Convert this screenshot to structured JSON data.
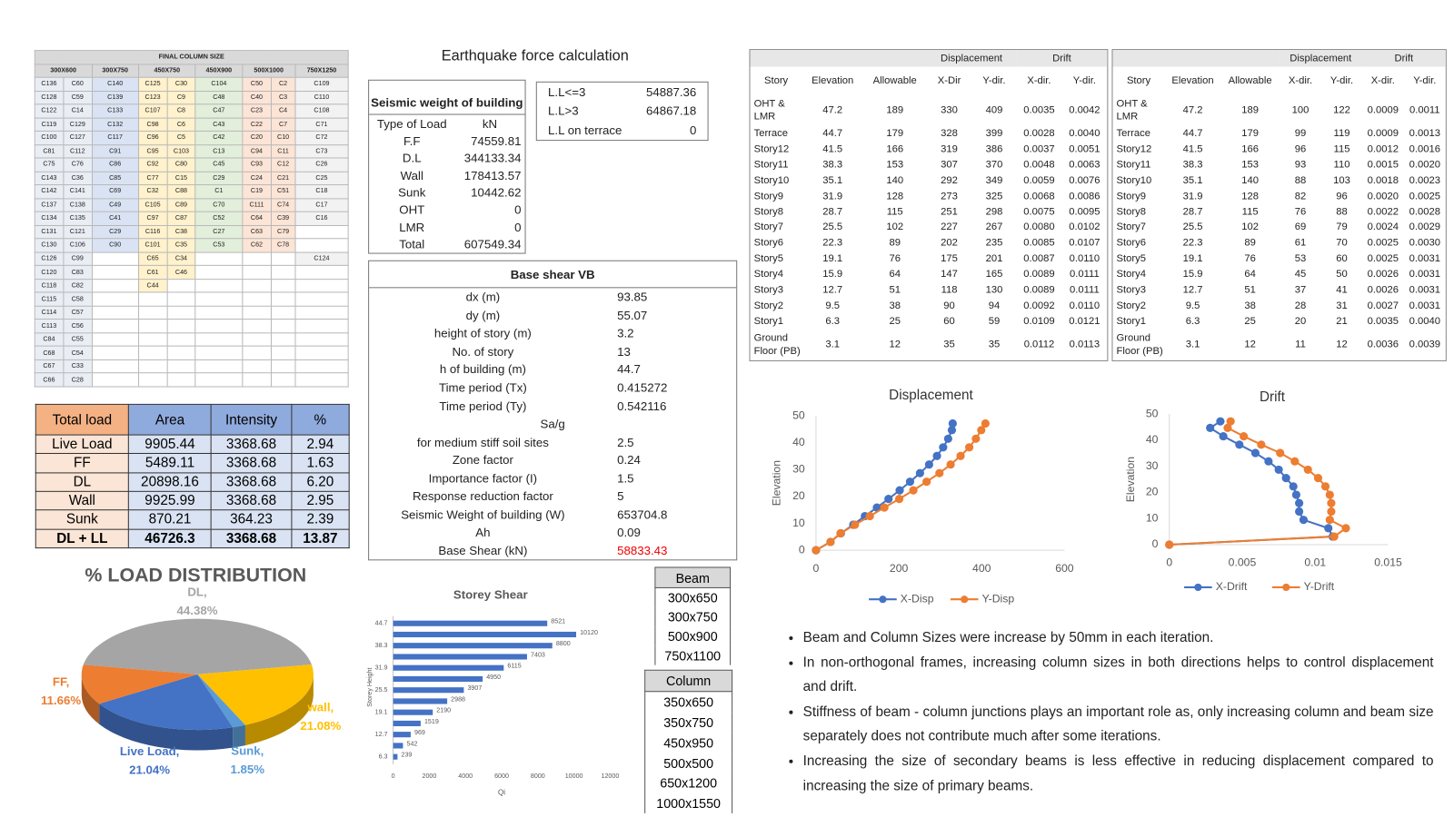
{
  "column_size": {
    "title": "FINAL COLUMN SIZE",
    "headers": [
      "300X600",
      "300X750",
      "450X750",
      "450X900",
      "500X1000",
      "750X1250"
    ],
    "rows": [
      [
        "C136",
        "C60",
        "C140",
        "C125",
        "C30",
        "C104",
        "C50",
        "C2",
        "C109"
      ],
      [
        "C128",
        "C59",
        "C139",
        "C123",
        "C9",
        "C48",
        "C40",
        "C3",
        "C110"
      ],
      [
        "C122",
        "C14",
        "C133",
        "C107",
        "C8",
        "C47",
        "C23",
        "C4",
        "C108"
      ],
      [
        "C119",
        "C129",
        "C132",
        "C98",
        "C6",
        "C43",
        "C22",
        "C7",
        "C71"
      ],
      [
        "C100",
        "C127",
        "C117",
        "C96",
        "C5",
        "C42",
        "C20",
        "C10",
        "C72"
      ],
      [
        "C81",
        "C112",
        "C91",
        "C95",
        "C103",
        "C13",
        "C94",
        "C11",
        "C73"
      ],
      [
        "C75",
        "C76",
        "C86",
        "C92",
        "C80",
        "C45",
        "C93",
        "C12",
        "C26"
      ],
      [
        "C143",
        "C36",
        "C85",
        "C77",
        "C15",
        "C29",
        "C24",
        "C21",
        "C25"
      ],
      [
        "C142",
        "C141",
        "C69",
        "C32",
        "C88",
        "C1",
        "C19",
        "C51",
        "C18"
      ],
      [
        "C137",
        "C138",
        "C49",
        "C105",
        "C89",
        "C70",
        "C111",
        "C74",
        "C17"
      ],
      [
        "C134",
        "C135",
        "C41",
        "C97",
        "C87",
        "C52",
        "C64",
        "C39",
        "C16"
      ],
      [
        "C131",
        "C121",
        "C29",
        "C116",
        "C38",
        "C27",
        "C63",
        "C79"
      ],
      [
        "C130",
        "C106",
        "C90",
        "C101",
        "C35",
        "C53",
        "C62",
        "C78"
      ],
      [
        "C126",
        "C99",
        null,
        "C65",
        "C34",
        null,
        null,
        null,
        "C124"
      ],
      [
        "C120",
        "C83",
        null,
        "C61",
        "C46"
      ],
      [
        "C118",
        "C82",
        null,
        "C44"
      ],
      [
        "C115",
        "C58"
      ],
      [
        "C114",
        "C57"
      ],
      [
        "C113",
        "C56"
      ],
      [
        "C84",
        "C55"
      ],
      [
        "C68",
        "C54"
      ],
      [
        "C67",
        "C33"
      ],
      [
        "C66",
        "C28"
      ]
    ]
  },
  "earthquake": {
    "title": "Earthquake force calculation",
    "seismic_weight": {
      "title": "Seismic weight of building",
      "header": [
        "Type of Load",
        "kN"
      ],
      "rows": [
        [
          "F.F",
          "74559.81"
        ],
        [
          "D.L",
          "344133.34"
        ],
        [
          "Wall",
          "178413.57"
        ],
        [
          "Sunk",
          "10442.62"
        ],
        [
          "OHT",
          "0"
        ],
        [
          "LMR",
          "0"
        ],
        [
          "Total",
          "607549.34"
        ]
      ]
    },
    "live_load": {
      "rows": [
        [
          "L.L<=3",
          "54887.36"
        ],
        [
          "L.L>3",
          "64867.18"
        ],
        [
          "L.L on terrace",
          "0"
        ]
      ]
    },
    "base_shear": {
      "title": "Base shear VB",
      "rows": [
        [
          "dx (m)",
          "93.85"
        ],
        [
          "dy (m)",
          "55.07"
        ],
        [
          "height of story (m)",
          "3.2"
        ],
        [
          "No. of story",
          "13"
        ],
        [
          "h of building (m)",
          "44.7"
        ],
        [
          "Time period (Tx)",
          "0.415272"
        ],
        [
          "Time period (Ty)",
          "0.542116"
        ],
        [
          "Sa/g"
        ],
        [
          "for medium stiff soil sites",
          "2.5"
        ],
        [
          "Zone factor",
          "0.24"
        ],
        [
          "Importance factor (I)",
          "1.5"
        ],
        [
          "Response reduction factor",
          "5"
        ],
        [
          "Seismic Weight of building (W)",
          "653704.8"
        ],
        [
          "Ah",
          "0.09"
        ],
        [
          "Base Shear (kN)",
          "58833.43"
        ]
      ]
    }
  },
  "total_load": {
    "header": [
      "Total load",
      "Area",
      "Intensity",
      "%"
    ],
    "rows": [
      [
        "Live Load",
        "9905.44",
        "3368.68",
        "2.94"
      ],
      [
        "FF",
        "5489.11",
        "3368.68",
        "1.63"
      ],
      [
        "DL",
        "20898.16",
        "3368.68",
        "6.20"
      ],
      [
        "Wall",
        "9925.99",
        "3368.68",
        "2.95"
      ],
      [
        "Sunk",
        "870.21",
        "364.23",
        "2.39"
      ],
      [
        "DL + LL",
        "46726.3",
        "3368.68",
        "13.87"
      ]
    ]
  },
  "beam": {
    "header": "Beam",
    "rows": [
      "300x650",
      "300x750",
      "500x900",
      "750x1100"
    ]
  },
  "column": {
    "header": "Column",
    "rows": [
      "350x650",
      "350x750",
      "450x950",
      "500x500",
      "650x1200",
      "1000x1550"
    ]
  },
  "drift_tables": [
    {
      "groups": [
        "Displacement",
        "Drift"
      ],
      "header": [
        "Story",
        "Elevation",
        "Allowable",
        "X-Dir",
        "Y-dir.",
        "X-dir.",
        "Y-dir."
      ],
      "rows": [
        [
          "OHT & LMR",
          "47.2",
          "189",
          "330",
          "409",
          "0.0035",
          "0.0042"
        ],
        [
          "Terrace",
          "44.7",
          "179",
          "328",
          "399",
          "0.0028",
          "0.0040"
        ],
        [
          "Story12",
          "41.5",
          "166",
          "319",
          "386",
          "0.0037",
          "0.0051"
        ],
        [
          "Story11",
          "38.3",
          "153",
          "307",
          "370",
          "0.0048",
          "0.0063"
        ],
        [
          "Story10",
          "35.1",
          "140",
          "292",
          "349",
          "0.0059",
          "0.0076"
        ],
        [
          "Story9",
          "31.9",
          "128",
          "273",
          "325",
          "0.0068",
          "0.0086"
        ],
        [
          "Story8",
          "28.7",
          "115",
          "251",
          "298",
          "0.0075",
          "0.0095"
        ],
        [
          "Story7",
          "25.5",
          "102",
          "227",
          "267",
          "0.0080",
          "0.0102"
        ],
        [
          "Story6",
          "22.3",
          "89",
          "202",
          "235",
          "0.0085",
          "0.0107"
        ],
        [
          "Story5",
          "19.1",
          "76",
          "175",
          "201",
          "0.0087",
          "0.0110"
        ],
        [
          "Story4",
          "15.9",
          "64",
          "147",
          "165",
          "0.0089",
          "0.0111"
        ],
        [
          "Story3",
          "12.7",
          "51",
          "118",
          "130",
          "0.0089",
          "0.0111"
        ],
        [
          "Story2",
          "9.5",
          "38",
          "90",
          "94",
          "0.0092",
          "0.0110"
        ],
        [
          "Story1",
          "6.3",
          "25",
          "60",
          "59",
          "0.0109",
          "0.0121"
        ],
        [
          "Ground Floor (PB)",
          "3.1",
          "12",
          "35",
          "35",
          "0.0112",
          "0.0113"
        ]
      ]
    },
    {
      "groups": [
        "Displacement",
        "Drift"
      ],
      "header": [
        "Story",
        "Elevation",
        "Allowable",
        "X-dir.",
        "Y-dir.",
        "X-dir.",
        "Y-dir."
      ],
      "rows": [
        [
          "OHT & LMR",
          "47.2",
          "189",
          "100",
          "122",
          "0.0009",
          "0.0011"
        ],
        [
          "Terrace",
          "44.7",
          "179",
          "99",
          "119",
          "0.0009",
          "0.0013"
        ],
        [
          "Story12",
          "41.5",
          "166",
          "96",
          "115",
          "0.0012",
          "0.0016"
        ],
        [
          "Story11",
          "38.3",
          "153",
          "93",
          "110",
          "0.0015",
          "0.0020"
        ],
        [
          "Story10",
          "35.1",
          "140",
          "88",
          "103",
          "0.0018",
          "0.0023"
        ],
        [
          "Story9",
          "31.9",
          "128",
          "82",
          "96",
          "0.0020",
          "0.0025"
        ],
        [
          "Story8",
          "28.7",
          "115",
          "76",
          "88",
          "0.0022",
          "0.0028"
        ],
        [
          "Story7",
          "25.5",
          "102",
          "69",
          "79",
          "0.0024",
          "0.0029"
        ],
        [
          "Story6",
          "22.3",
          "89",
          "61",
          "70",
          "0.0025",
          "0.0030"
        ],
        [
          "Story5",
          "19.1",
          "76",
          "53",
          "60",
          "0.0025",
          "0.0031"
        ],
        [
          "Story4",
          "15.9",
          "64",
          "45",
          "50",
          "0.0026",
          "0.0031"
        ],
        [
          "Story3",
          "12.7",
          "51",
          "37",
          "41",
          "0.0026",
          "0.0031"
        ],
        [
          "Story2",
          "9.5",
          "38",
          "28",
          "31",
          "0.0027",
          "0.0031"
        ],
        [
          "Story1",
          "6.3",
          "25",
          "20",
          "21",
          "0.0035",
          "0.0040"
        ],
        [
          "Ground Floor (PB)",
          "3.1",
          "12",
          "11",
          "12",
          "0.0036",
          "0.0039"
        ]
      ]
    }
  ],
  "bullets": [
    "Beam and Column Sizes were increase by 50mm in each iteration.",
    "In non-orthogonal frames, increasing column sizes in both directions helps to control displacement and drift.",
    "Stiffness of beam - column junctions plays an important role as, only increasing column and beam size separately does not contribute much after some iterations.",
    "Increasing the size of secondary beams is less effective in reducing displacement compared to increasing the size of primary beams."
  ],
  "chart_data": [
    {
      "type": "pie",
      "title": "% LOAD DISTRIBUTION",
      "categories": [
        "DL,",
        "wall,",
        "Sunk,",
        "Live Load,",
        "FF,"
      ],
      "values": [
        44.38,
        21.08,
        1.85,
        21.04,
        11.66
      ],
      "value_labels": [
        "44.38%",
        "21.08%",
        "1.85%",
        "21.04%",
        "11.66%"
      ],
      "colors": [
        "#a5a5a5",
        "#ffc000",
        "#5b9bd5",
        "#4472c4",
        "#ed7d31"
      ]
    },
    {
      "type": "bar",
      "orientation": "horizontal",
      "title": "Storey Shear",
      "ylabel": "Storey Height",
      "xlabel": "Qi",
      "categories": [
        44.7,
        null,
        38.3,
        null,
        31.9,
        null,
        25.5,
        null,
        19.1,
        null,
        12.7,
        null,
        6.3
      ],
      "values": [
        8521,
        10120,
        8800,
        7403,
        6115,
        4950,
        3907,
        2988,
        2190,
        1519,
        969,
        542,
        239
      ],
      "color": "#4472c4",
      "xlim": [
        0,
        12000
      ],
      "xticks": [
        0,
        2000,
        4000,
        6000,
        8000,
        10000,
        12000
      ]
    },
    {
      "type": "line",
      "title": "Displacement",
      "ylabel": "Elevation",
      "legend": "bottom",
      "xlim": [
        0,
        600
      ],
      "xticks": [
        0,
        200,
        400,
        600
      ],
      "ylim": [
        0,
        50
      ],
      "yticks": [
        0,
        10,
        20,
        30,
        40,
        50
      ],
      "series": [
        {
          "name": "X-Disp",
          "color": "#4472c4",
          "x": [
            0,
            35,
            60,
            90,
            118,
            147,
            175,
            202,
            227,
            251,
            273,
            292,
            307,
            319,
            328,
            330
          ],
          "values": [
            0,
            3.1,
            6.3,
            9.5,
            12.7,
            15.9,
            19.1,
            22.3,
            25.5,
            28.7,
            31.9,
            35.1,
            38.3,
            41.5,
            44.7,
            47.2
          ]
        },
        {
          "name": "Y-Disp",
          "color": "#ed7d31",
          "x": [
            0,
            35,
            59,
            94,
            130,
            165,
            201,
            235,
            267,
            298,
            325,
            349,
            370,
            386,
            399,
            409
          ],
          "values": [
            0,
            3.1,
            6.3,
            9.5,
            12.7,
            15.9,
            19.1,
            22.3,
            25.5,
            28.7,
            31.9,
            35.1,
            38.3,
            41.5,
            44.7,
            47.2
          ]
        }
      ]
    },
    {
      "type": "line",
      "title": "Drift",
      "ylabel": "Elevation",
      "legend": "bottom",
      "xlim": [
        0,
        0.015
      ],
      "xticks": [
        0,
        0.005,
        0.01,
        0.015
      ],
      "ylim": [
        0,
        50
      ],
      "yticks": [
        0,
        10,
        20,
        30,
        40,
        50
      ],
      "series": [
        {
          "name": "X-Drift",
          "color": "#4472c4",
          "x": [
            0,
            0.0112,
            0.0109,
            0.0092,
            0.0089,
            0.0089,
            0.0087,
            0.0085,
            0.008,
            0.0075,
            0.0068,
            0.0059,
            0.0048,
            0.0037,
            0.0028,
            0.0035
          ],
          "values": [
            0,
            3.1,
            6.3,
            9.5,
            12.7,
            15.9,
            19.1,
            22.3,
            25.5,
            28.7,
            31.9,
            35.1,
            38.3,
            41.5,
            44.7,
            47.2
          ]
        },
        {
          "name": "Y-Drift",
          "color": "#ed7d31",
          "x": [
            0,
            0.0113,
            0.0121,
            0.011,
            0.0111,
            0.0111,
            0.011,
            0.0107,
            0.0102,
            0.0095,
            0.0086,
            0.0076,
            0.0063,
            0.0051,
            0.004,
            0.0042
          ],
          "values": [
            0,
            3.1,
            6.3,
            9.5,
            12.7,
            15.9,
            19.1,
            22.3,
            25.5,
            28.7,
            31.9,
            35.1,
            38.3,
            41.5,
            44.7,
            47.2
          ]
        }
      ]
    }
  ]
}
